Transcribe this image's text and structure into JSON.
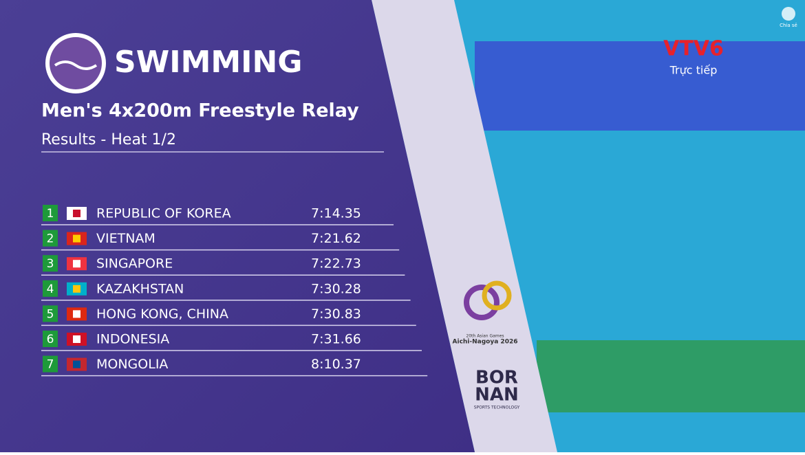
{
  "header": {
    "sport": "SWIMMING",
    "event": "Men's 4x200m Freestyle Relay",
    "subtitle": "Results - Heat 1/2"
  },
  "table": {
    "rows": [
      {
        "rank": 1,
        "country": "REPUBLIC OF KOREA",
        "time": "7:14.35"
      },
      {
        "rank": 2,
        "country": "VIETNAM",
        "time": "7:21.62"
      },
      {
        "rank": 3,
        "country": "SINGAPORE",
        "time": "7:22.73"
      },
      {
        "rank": 4,
        "country": "KAZAKHSTAN",
        "time": "7:30.28"
      },
      {
        "rank": 5,
        "country": "HONG KONG, CHINA",
        "time": "7:30.83"
      },
      {
        "rank": 6,
        "country": "INDONESIA",
        "time": "7:31.66"
      },
      {
        "rank": 7,
        "country": "MONGOLIA",
        "time": "8:10.37"
      }
    ]
  },
  "broadcaster": {
    "logo": "VTV6",
    "status": "Trực tiếp"
  },
  "share": "Chia sẻ",
  "games": {
    "edition": "20th Asian Games",
    "host": "Aichi-Nagoya 2026"
  },
  "sponsor": {
    "line1": "BOR",
    "line2": "NAN",
    "tagline": "SPORTS TECHNOLOGY"
  }
}
